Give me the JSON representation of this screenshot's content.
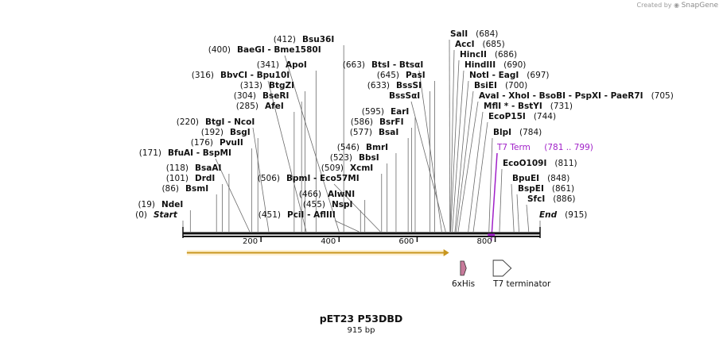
{
  "credit": {
    "created_by": "Created by",
    "brand": "SnapGene"
  },
  "plasmid": {
    "name": "pET23 P53DBD",
    "length_label": "915 bp",
    "length": 915
  },
  "colors": {
    "t7_term": "#a020c8",
    "backbone": "#111111",
    "feature_fill": "#c77a9a"
  },
  "sites": [
    {
      "id": "start",
      "pos": 0,
      "names": [
        "Start"
      ]
    },
    {
      "id": "ndei",
      "pos": 19,
      "names": [
        "NdeI"
      ]
    },
    {
      "id": "bsmi",
      "pos": 86,
      "names": [
        "BsmI"
      ]
    },
    {
      "id": "drdi",
      "pos": 101,
      "names": [
        "DrdI"
      ]
    },
    {
      "id": "bsaai",
      "pos": 118,
      "names": [
        "BsaAI"
      ]
    },
    {
      "id": "bfuai",
      "pos": 171,
      "names": [
        "BfuAI",
        "BspMI"
      ]
    },
    {
      "id": "pvuii",
      "pos": 176,
      "names": [
        "PvuII"
      ]
    },
    {
      "id": "bsgi",
      "pos": 192,
      "names": [
        "BsgI"
      ]
    },
    {
      "id": "btgi",
      "pos": 220,
      "names": [
        "BtgI",
        "NcoI"
      ]
    },
    {
      "id": "afei",
      "pos": 285,
      "names": [
        "AfeI"
      ]
    },
    {
      "id": "seri",
      "pos": 304,
      "names": [
        "BseRI"
      ]
    },
    {
      "id": "btgzi",
      "pos": 313,
      "names": [
        "BtgZI"
      ]
    },
    {
      "id": "bbvci",
      "pos": 316,
      "names": [
        "BbvCI",
        "Bpu10I"
      ]
    },
    {
      "id": "apoi",
      "pos": 341,
      "names": [
        "ApoI"
      ]
    },
    {
      "id": "baegi",
      "pos": 400,
      "names": [
        "BaeGI",
        "Bme1580I"
      ]
    },
    {
      "id": "bsu36i",
      "pos": 412,
      "names": [
        "Bsu36I"
      ]
    },
    {
      "id": "pcii",
      "pos": 451,
      "names": [
        "PciI",
        "AflIII"
      ]
    },
    {
      "id": "nspi",
      "pos": 455,
      "names": [
        "NspI"
      ]
    },
    {
      "id": "alwni",
      "pos": 466,
      "names": [
        "AlwNI"
      ]
    },
    {
      "id": "bpmi",
      "pos": 506,
      "names": [
        "BpmI",
        "Eco57MI"
      ]
    },
    {
      "id": "xcmi",
      "pos": 509,
      "names": [
        "XcmI"
      ]
    },
    {
      "id": "bbsi",
      "pos": 523,
      "names": [
        "BbsI"
      ]
    },
    {
      "id": "bmri",
      "pos": 546,
      "names": [
        "BmrI"
      ]
    },
    {
      "id": "bsai",
      "pos": 577,
      "names": [
        "BsaI"
      ]
    },
    {
      "id": "bsrfi",
      "pos": 586,
      "names": [
        "BsrFI"
      ]
    },
    {
      "id": "eari",
      "pos": 595,
      "names": [
        "EarI"
      ]
    },
    {
      "id": "bsssi",
      "pos": 633,
      "names": [
        "BssSI"
      ]
    },
    {
      "id": "pasi",
      "pos": 645,
      "names": [
        "PasI"
      ]
    },
    {
      "id": "btsi",
      "pos": 663,
      "names": [
        "BtsI",
        "BtsαI"
      ]
    },
    {
      "id": "bsssai",
      "pos": 673,
      "names": [
        "BssSαI"
      ]
    },
    {
      "id": "sali",
      "pos": 684,
      "names": [
        "SalI"
      ]
    },
    {
      "id": "acci",
      "pos": 685,
      "names": [
        "AccI"
      ]
    },
    {
      "id": "hincii",
      "pos": 686,
      "names": [
        "HincII"
      ]
    },
    {
      "id": "hindiii",
      "pos": 690,
      "names": [
        "HindIII"
      ]
    },
    {
      "id": "noti",
      "pos": 697,
      "names": [
        "NotI",
        "EagI"
      ]
    },
    {
      "id": "bsiei",
      "pos": 700,
      "names": [
        "BsiEI"
      ]
    },
    {
      "id": "avai",
      "pos": 705,
      "names": [
        "AvaI",
        "XhoI",
        "BsoBI",
        "PspXI",
        "PaeR7I"
      ]
    },
    {
      "id": "mfli",
      "pos": 731,
      "names": [
        "MflI *",
        "BstYI"
      ]
    },
    {
      "id": "ecop15i",
      "pos": 744,
      "names": [
        "EcoP15I"
      ]
    },
    {
      "id": "blpi",
      "pos": 784,
      "names": [
        "BlpI"
      ]
    },
    {
      "id": "eco109i",
      "pos": 811,
      "names": [
        "EcoO109I"
      ]
    },
    {
      "id": "bpuei",
      "pos": 848,
      "names": [
        "BpuEI"
      ]
    },
    {
      "id": "bspei",
      "pos": 861,
      "names": [
        "BspEI"
      ]
    },
    {
      "id": "sfci",
      "pos": 886,
      "names": [
        "SfcI"
      ]
    },
    {
      "id": "end",
      "pos": 915,
      "names": [
        "End"
      ]
    }
  ],
  "t7_term": {
    "label": "T7 Term",
    "range": "(781 .. 799)",
    "start": 781,
    "end": 799
  },
  "ticks": [
    200,
    400,
    600,
    800
  ],
  "features": [
    {
      "id": "cds",
      "start": 10,
      "end": 682,
      "label": ""
    },
    {
      "id": "his",
      "start": 711,
      "end": 726,
      "label": "6xHis"
    },
    {
      "id": "t7term",
      "start": 795,
      "end": 841,
      "label": "T7 terminator"
    }
  ]
}
